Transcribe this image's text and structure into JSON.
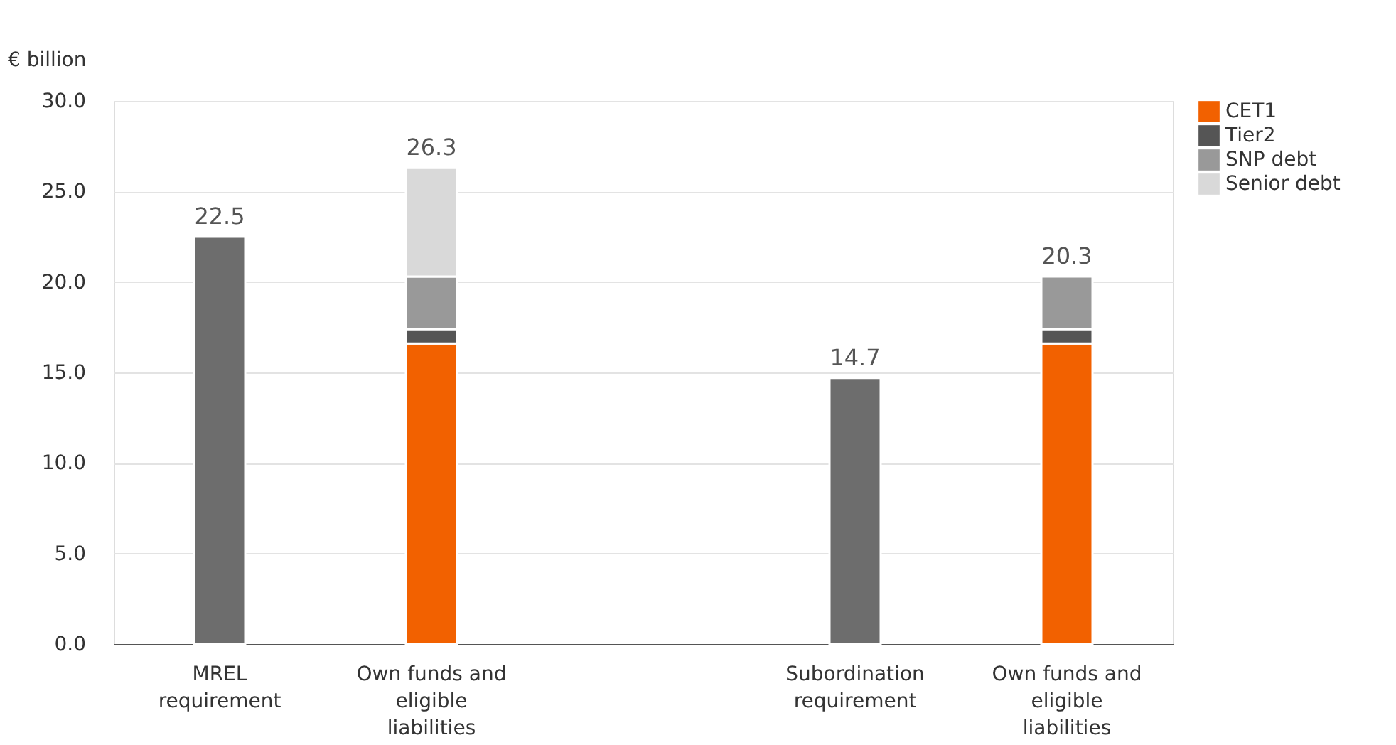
{
  "chart_data": {
    "type": "bar",
    "stacked": true,
    "ylabel": "€ billion",
    "categories": [
      "MREL requirement",
      "Own funds and eligible liabilities",
      null,
      "Subordination requirement",
      "Own funds and eligible liabilities"
    ],
    "series": [
      {
        "color": "#6d6d6d",
        "values": [
          22.5,
          null,
          null,
          14.7,
          null
        ]
      },
      {
        "name": "CET1",
        "color": "#f26100",
        "values": [
          null,
          16.6,
          null,
          null,
          16.6
        ]
      },
      {
        "name": "Tier2",
        "color": "#555555",
        "values": [
          null,
          0.8,
          null,
          null,
          0.8
        ]
      },
      {
        "name": "SNP debt",
        "color": "#999999",
        "values": [
          null,
          2.9,
          null,
          null,
          2.9
        ]
      },
      {
        "name": "Senior debt",
        "color": "#d9d9d9",
        "values": [
          null,
          6.0,
          null,
          null,
          null
        ]
      }
    ],
    "totals": [
      "22.5",
      "26.3",
      null,
      "14.7",
      "20.3"
    ],
    "ylim": [
      0,
      30
    ],
    "yticks": [
      {
        "value": 0,
        "label": "0.0"
      },
      {
        "value": 5,
        "label": "5.0"
      },
      {
        "value": 10,
        "label": "10.0"
      },
      {
        "value": 15,
        "label": "15.0"
      },
      {
        "value": 20,
        "label": "20.0"
      },
      {
        "value": 25,
        "label": "25.0"
      },
      {
        "value": 30,
        "label": "30.0"
      }
    ],
    "grid": "y",
    "legend": "right"
  }
}
